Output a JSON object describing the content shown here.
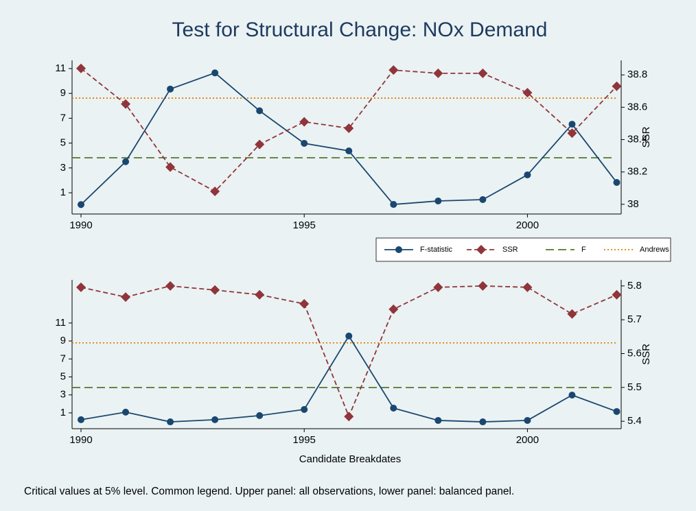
{
  "title": "Test for Structural Change: NOx Demand",
  "note": "Critical values at 5% level. Common legend. Upper panel: all observations, lower panel: balanced panel.",
  "chart_data": [
    {
      "type": "line",
      "x": [
        1990,
        1991,
        1992,
        1993,
        1994,
        1995,
        1996,
        1997,
        1998,
        1999,
        2000,
        2001,
        2002
      ],
      "xlim": [
        1989.8,
        2002.1
      ],
      "xticks": [
        1990,
        1995,
        2000
      ],
      "ylim": [
        -0.71,
        11.66
      ],
      "yticks": [
        1,
        3,
        5,
        7,
        9,
        11
      ],
      "y2label": "SSR",
      "y2lim": [
        37.94,
        38.89
      ],
      "y2ticks": [
        38,
        {
          "value": 38.2,
          "label": "38.2"
        },
        {
          "value": 38.4,
          "label": "38.4"
        },
        {
          "value": 38.6,
          "label": "38.6"
        },
        {
          "value": 38.8,
          "label": "38.8"
        }
      ],
      "series": [
        {
          "name": "F-statistic",
          "color": "#1a476f",
          "marker": "circle",
          "values": [
            0.05,
            3.5,
            9.35,
            10.65,
            7.6,
            4.98,
            4.37,
            0.06,
            0.34,
            0.45,
            2.44,
            6.52,
            1.83
          ]
        },
        {
          "name": "SSR",
          "color": "#90353b",
          "marker": "diamond",
          "axis": "y2",
          "dash": "7 4",
          "values": [
            38.84,
            38.62,
            38.23,
            38.08,
            38.37,
            38.51,
            38.47,
            38.83,
            38.81,
            38.81,
            38.69,
            38.44,
            38.73
          ]
        }
      ],
      "hlines": [
        {
          "name": "F",
          "color": "#55752f",
          "dash": "12 6",
          "value": 3.82
        },
        {
          "name": "Andrews",
          "color": "#e37e00",
          "dash": "2 3",
          "value": 8.62
        }
      ],
      "legend": "bottom-right"
    },
    {
      "type": "line",
      "x": [
        1990,
        1991,
        1992,
        1993,
        1994,
        1995,
        1996,
        1997,
        1998,
        1999,
        2000,
        2001,
        2002
      ],
      "xlim": [
        1989.8,
        2002.1
      ],
      "xticks": [
        1990,
        1995,
        2000
      ],
      "xlabel": "Candidate Breakdates",
      "ylim": [
        -0.76,
        15.8
      ],
      "yticks": [
        1,
        3,
        5,
        7,
        9,
        11
      ],
      "y2label": "SSR",
      "y2lim": [
        5.378,
        5.818
      ],
      "y2ticks": [
        5.4,
        5.5,
        5.6,
        5.7,
        5.8
      ],
      "series": [
        {
          "color": "#1a476f",
          "marker": "circle",
          "values": [
            0.24,
            1.08,
            0,
            0.24,
            0.7,
            1.38,
            9.55,
            1.53,
            0.16,
            0,
            0.16,
            2.98,
            1.15
          ]
        },
        {
          "color": "#90353b",
          "marker": "diamond",
          "axis": "y2",
          "dash": "7 4",
          "values": [
            5.796,
            5.767,
            5.8,
            5.788,
            5.774,
            5.747,
            5.414,
            5.731,
            5.796,
            5.8,
            5.796,
            5.717,
            5.774
          ]
        }
      ],
      "hlines": [
        {
          "color": "#55752f",
          "dash": "12 6",
          "value": 3.82
        },
        {
          "color": "#e37e00",
          "dash": "2 3",
          "value": 8.79
        }
      ]
    }
  ]
}
